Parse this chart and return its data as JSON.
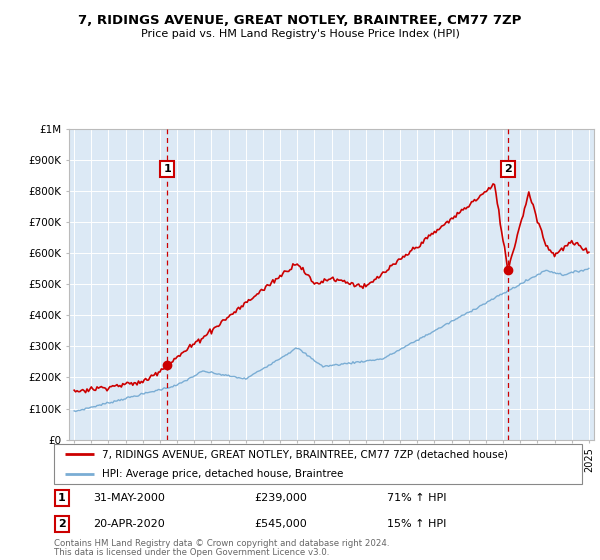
{
  "title": "7, RIDINGS AVENUE, GREAT NOTLEY, BRAINTREE, CM77 7ZP",
  "subtitle": "Price paid vs. HM Land Registry's House Price Index (HPI)",
  "property_color": "#cc0000",
  "hpi_color": "#7aadd4",
  "background_color": "#dce9f5",
  "marker1_year": 2000.42,
  "marker1_value": 239000,
  "marker2_year": 2020.28,
  "marker2_value": 545000,
  "legend_property": "7, RIDINGS AVENUE, GREAT NOTLEY, BRAINTREE, CM77 7ZP (detached house)",
  "legend_hpi": "HPI: Average price, detached house, Braintree",
  "marker1_date": "31-MAY-2000",
  "marker1_price": "£239,000",
  "marker1_hpi": "71% ↑ HPI",
  "marker2_date": "20-APR-2020",
  "marker2_price": "£545,000",
  "marker2_hpi": "15% ↑ HPI",
  "footer1": "Contains HM Land Registry data © Crown copyright and database right 2024.",
  "footer2": "This data is licensed under the Open Government Licence v3.0.",
  "ylim": [
    0,
    1000000
  ],
  "xlim_start": 1994.7,
  "xlim_end": 2025.3
}
